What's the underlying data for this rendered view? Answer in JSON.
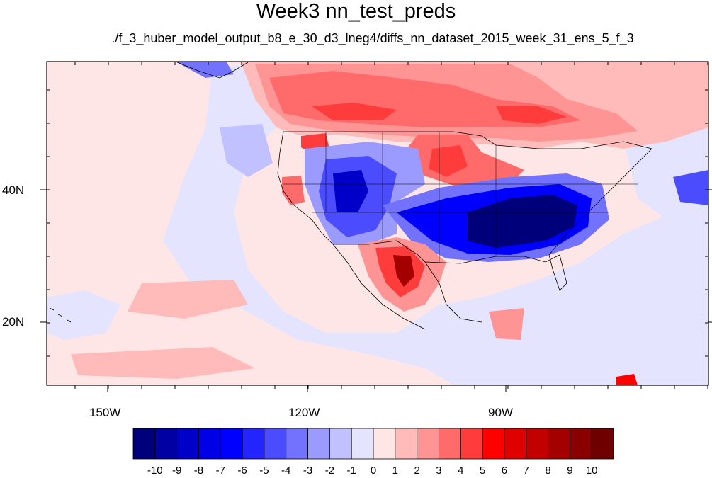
{
  "title": "Week3 nn_test_preds",
  "subtitle": "./f_3_huber_model_output_b8_e_30_d3_lneg4/diffs_nn_dataset_2015_week_31_ens_5_f_3",
  "map": {
    "lon_range": [
      -160,
      -62
    ],
    "lat_range": [
      11,
      59
    ],
    "lon_ticks": [
      "150W",
      "120W",
      "90W"
    ],
    "lat_ticks": [
      "40N",
      "20N"
    ],
    "background": "#ffe6e6"
  },
  "colorbar": {
    "colors": [
      "#00007a",
      "#0000a3",
      "#0000c8",
      "#0000e6",
      "#0000ff",
      "#2424ff",
      "#4c4cff",
      "#7272ff",
      "#9a9aff",
      "#c1c1ff",
      "#e4e4ff",
      "#ffe6e6",
      "#ffbaba",
      "#ff9494",
      "#ff6b6b",
      "#ff3c3c",
      "#ff0000",
      "#e00000",
      "#c30000",
      "#a40000",
      "#8a0000",
      "#6e0000"
    ],
    "labels": [
      "-10",
      "-9",
      "-8",
      "-7",
      "-6",
      "-5",
      "-4",
      "-3",
      "-2",
      "-1",
      "0",
      "1",
      "2",
      "3",
      "4",
      "5",
      "6",
      "7",
      "8",
      "9",
      "10"
    ]
  }
}
